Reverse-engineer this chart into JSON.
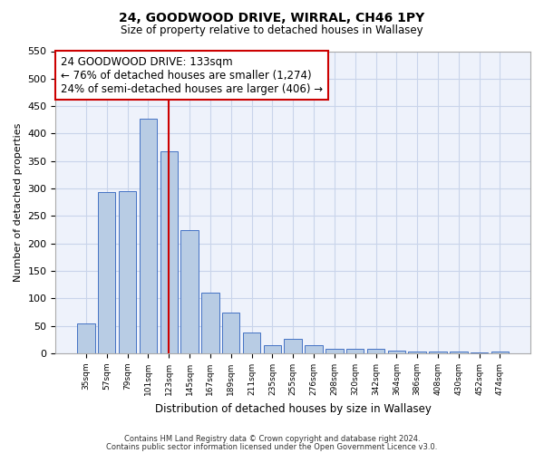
{
  "title": "24, GOODWOOD DRIVE, WIRRAL, CH46 1PY",
  "subtitle": "Size of property relative to detached houses in Wallasey",
  "xlabel": "Distribution of detached houses by size in Wallasey",
  "ylabel": "Number of detached properties",
  "footer_line1": "Contains HM Land Registry data © Crown copyright and database right 2024.",
  "footer_line2": "Contains public sector information licensed under the Open Government Licence v3.0.",
  "categories": [
    "35sqm",
    "57sqm",
    "79sqm",
    "101sqm",
    "123sqm",
    "145sqm",
    "167sqm",
    "189sqm",
    "211sqm",
    "235sqm",
    "255sqm",
    "276sqm",
    "298sqm",
    "320sqm",
    "342sqm",
    "364sqm",
    "386sqm",
    "408sqm",
    "430sqm",
    "452sqm",
    "474sqm"
  ],
  "values": [
    55,
    293,
    295,
    427,
    368,
    225,
    110,
    75,
    38,
    15,
    27,
    15,
    8,
    9,
    8,
    5,
    4,
    4,
    3,
    2,
    4
  ],
  "bar_color": "#b8cce4",
  "bar_edge_color": "#4472c4",
  "grid_color": "#c9d4ea",
  "bg_color": "#eef2fb",
  "annotation_box_color": "#cc0000",
  "vline_color": "#cc0000",
  "ylim": [
    0,
    550
  ],
  "yticks": [
    0,
    50,
    100,
    150,
    200,
    250,
    300,
    350,
    400,
    450,
    500,
    550
  ],
  "annotation_text_line1": "24 GOODWOOD DRIVE: 133sqm",
  "annotation_text_line2": "← 76% of detached houses are smaller (1,274)",
  "annotation_text_line3": "24% of semi-detached houses are larger (406) →",
  "vline_position": 4.0
}
